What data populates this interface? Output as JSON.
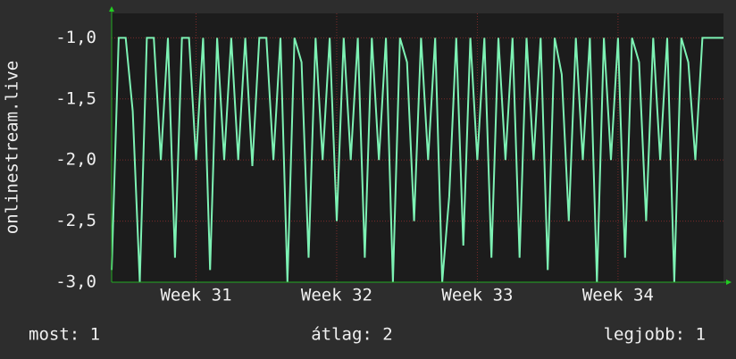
{
  "chart_data": {
    "type": "line",
    "y_label": "onlinestream.live",
    "x": [
      30.4,
      30.45,
      30.5,
      30.55,
      30.6,
      30.65,
      30.7,
      30.75,
      30.8,
      30.85,
      30.9,
      30.95,
      31.0,
      31.05,
      31.1,
      31.15,
      31.2,
      31.25,
      31.3,
      31.35,
      31.4,
      31.45,
      31.5,
      31.55,
      31.6,
      31.65,
      31.7,
      31.75,
      31.8,
      31.85,
      31.9,
      31.95,
      32.0,
      32.05,
      32.1,
      32.15,
      32.2,
      32.25,
      32.3,
      32.35,
      32.4,
      32.45,
      32.5,
      32.55,
      32.6,
      32.65,
      32.7,
      32.75,
      32.8,
      32.85,
      32.9,
      32.95,
      33.0,
      33.05,
      33.1,
      33.15,
      33.2,
      33.25,
      33.3,
      33.35,
      33.4,
      33.45,
      33.5,
      33.55,
      33.6,
      33.65,
      33.7,
      33.75,
      33.8,
      33.85,
      33.9,
      33.95,
      34.0,
      34.05,
      34.1,
      34.15,
      34.2,
      34.25,
      34.3,
      34.35,
      34.4,
      34.45,
      34.5,
      34.55,
      34.6,
      34.65,
      34.7,
      34.75
    ],
    "values": [
      -2.9,
      -1.0,
      -1.0,
      -1.6,
      -3.0,
      -1.0,
      -1.0,
      -2.0,
      -1.0,
      -2.8,
      -1.0,
      -1.0,
      -2.0,
      -1.0,
      -2.9,
      -1.0,
      -2.0,
      -1.0,
      -2.0,
      -1.0,
      -2.05,
      -1.0,
      -1.0,
      -2.0,
      -1.0,
      -3.0,
      -1.0,
      -1.2,
      -2.8,
      -1.0,
      -2.0,
      -1.0,
      -2.5,
      -1.0,
      -2.0,
      -1.0,
      -2.8,
      -1.0,
      -2.0,
      -1.0,
      -3.0,
      -1.0,
      -1.2,
      -2.5,
      -1.0,
      -2.0,
      -1.0,
      -3.0,
      -2.3,
      -1.0,
      -2.7,
      -1.0,
      -2.0,
      -1.0,
      -2.8,
      -1.0,
      -2.0,
      -1.0,
      -2.8,
      -1.0,
      -2.0,
      -1.0,
      -2.9,
      -1.0,
      -1.3,
      -2.5,
      -1.0,
      -2.0,
      -1.0,
      -3.0,
      -1.0,
      -2.0,
      -1.0,
      -2.8,
      -1.0,
      -1.2,
      -2.5,
      -1.0,
      -2.0,
      -1.0,
      -3.0,
      -1.0,
      -1.2,
      -2.0,
      -1.0,
      -1.0,
      -1.0,
      -1.0
    ],
    "color": "#7df2b4",
    "xlim": [
      30.4,
      34.75
    ],
    "xticks": [
      {
        "value": 31,
        "label": "Week 31"
      },
      {
        "value": 32,
        "label": "Week 32"
      },
      {
        "value": 33,
        "label": "Week 33"
      },
      {
        "value": 34,
        "label": "Week 34"
      }
    ],
    "ylim": [
      -3,
      -0.8
    ],
    "yticks": [
      {
        "value": -3,
        "label": "-3,0"
      },
      {
        "value": -2.5,
        "label": "-2,5"
      },
      {
        "value": -2,
        "label": "-2,0"
      },
      {
        "value": -1.5,
        "label": "-1,5"
      },
      {
        "value": -1,
        "label": "-1,0"
      }
    ],
    "grid": true,
    "stats": [
      "most: 1",
      "átlag: 2",
      "legjobb: 1"
    ]
  }
}
